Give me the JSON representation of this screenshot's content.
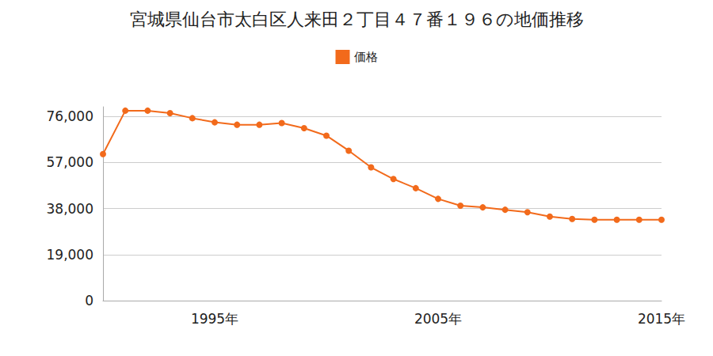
{
  "chart_data": {
    "type": "line",
    "title": "宮城県仙台市太白区人来田２丁目４７番１９６の地価推移",
    "categories": [
      null,
      null,
      null,
      null,
      null,
      "1995年",
      null,
      null,
      null,
      null,
      null,
      null,
      null,
      null,
      null,
      "2005年",
      null,
      null,
      null,
      null,
      null,
      null,
      null,
      null,
      null,
      "2015年"
    ],
    "series": [
      {
        "name": "価格",
        "color": "#f26a1b",
        "marker": "circle",
        "values": [
          60500,
          78400,
          78400,
          77400,
          75300,
          73600,
          72600,
          72600,
          73300,
          71200,
          68100,
          61900,
          55000,
          50200,
          46400,
          42000,
          39200,
          38500,
          37500,
          36500,
          34700,
          33700,
          33400,
          33400,
          33400,
          33400
        ]
      }
    ],
    "ylim": [
      0,
      80000
    ],
    "yticks": [
      0,
      {
        "value": 19000,
        "label": "19,000"
      },
      {
        "value": 38000,
        "label": "38,000"
      },
      {
        "value": 57000,
        "label": "57,000"
      },
      {
        "value": 76000,
        "label": "76,000"
      }
    ],
    "grid": true,
    "legend": "top"
  }
}
